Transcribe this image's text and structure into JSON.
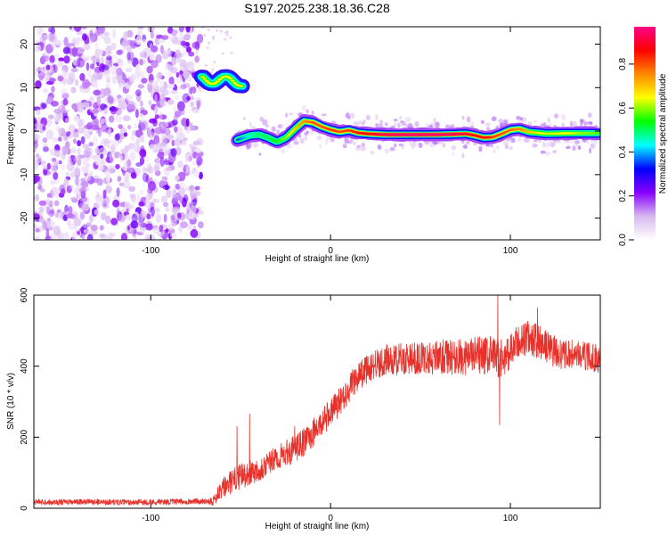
{
  "title": "S197.2025.238.18.36.C28",
  "chart_data": [
    {
      "type": "heatmap",
      "title": "S197.2025.238.18.36.C28",
      "xlabel": "Height of straight line (km)",
      "ylabel": "Frequency (Hz)",
      "xlim": [
        -165,
        150
      ],
      "ylim": [
        -25,
        24
      ],
      "xticks": [
        -100,
        0,
        100
      ],
      "yticks": [
        -20,
        -10,
        0,
        10,
        20
      ],
      "colorbar": {
        "label": "Normalized spectral amplitude",
        "range": [
          0,
          0.97
        ],
        "ticks": [
          0.0,
          0.2,
          0.4,
          0.6,
          0.8
        ],
        "tick_labels": [
          "0.0",
          "0.2",
          "0.4",
          "0.6",
          "0.8"
        ],
        "colormap": [
          "#ffffff",
          "#d8b8f0",
          "#8800ff",
          "#0000ff",
          "#00ffff",
          "#00ff00",
          "#ffff00",
          "#ff8800",
          "#ff0000",
          "#ff0088"
        ]
      },
      "noise_region": {
        "x": [
          -165,
          -72
        ],
        "y": [
          -25,
          24
        ],
        "amplitude_range": [
          0.0,
          0.2
        ]
      },
      "segments": [
        {
          "name": "upper band",
          "x": [
            -72,
            -50
          ],
          "freq_hz": 12,
          "peak_amplitude": 0.65
        },
        {
          "name": "main band",
          "x": [
            -52,
            148
          ],
          "peak_amplitude": 0.95
        }
      ],
      "ridge": {
        "x": [
          -52,
          -45,
          -40,
          -35,
          -30,
          -25,
          -20,
          -15,
          -10,
          -5,
          0,
          5,
          10,
          15,
          20,
          25,
          30,
          40,
          50,
          60,
          70,
          75,
          80,
          85,
          90,
          95,
          100,
          105,
          110,
          120,
          130,
          140,
          148
        ],
        "freq": [
          -2.0,
          -1.0,
          -0.8,
          -1.5,
          -2.5,
          -1.5,
          0.5,
          2.3,
          2.0,
          1.0,
          0.3,
          -0.2,
          0.2,
          -0.4,
          -0.6,
          -0.7,
          -0.8,
          -0.8,
          -0.8,
          -0.8,
          -0.7,
          -0.6,
          -1.0,
          -1.5,
          -1.4,
          -0.6,
          0.3,
          0.5,
          -0.2,
          -0.6,
          -0.5,
          -0.5,
          -0.5
        ],
        "amplitude": [
          0.35,
          0.45,
          0.5,
          0.5,
          0.55,
          0.6,
          0.7,
          0.75,
          0.8,
          0.8,
          0.82,
          0.8,
          0.82,
          0.85,
          0.87,
          0.9,
          0.93,
          0.95,
          0.95,
          0.95,
          0.93,
          0.9,
          0.85,
          0.88,
          0.82,
          0.8,
          0.78,
          0.76,
          0.7,
          0.62,
          0.65,
          0.6,
          0.58
        ]
      }
    },
    {
      "type": "line",
      "xlabel": "Height of straight line (km)",
      "ylabel": "SNR (10 * v/v)",
      "xlim": [
        -165,
        150
      ],
      "ylim": [
        0,
        600
      ],
      "xticks": [
        -100,
        0,
        100
      ],
      "yticks": [
        0,
        200,
        400,
        600
      ],
      "series": [
        {
          "name": "SNR",
          "color": "#e8312a",
          "x": [
            -165,
            -150,
            -130,
            -110,
            -90,
            -70,
            -65,
            -60,
            -55,
            -50,
            -45,
            -40,
            -35,
            -30,
            -25,
            -20,
            -15,
            -10,
            -5,
            0,
            5,
            10,
            15,
            20,
            25,
            30,
            40,
            50,
            60,
            70,
            80,
            90,
            95,
            100,
            105,
            110,
            115,
            120,
            125,
            130,
            135,
            140,
            145,
            150
          ],
          "values": [
            18,
            17,
            18,
            17,
            18,
            20,
            22,
            55,
            75,
            90,
            100,
            110,
            125,
            140,
            155,
            165,
            185,
            210,
            240,
            270,
            300,
            335,
            370,
            390,
            405,
            415,
            420,
            422,
            425,
            425,
            428,
            430,
            420,
            440,
            470,
            480,
            470,
            455,
            440,
            430,
            435,
            430,
            425,
            420
          ],
          "noise_amplitude": [
            8,
            8,
            8,
            8,
            8,
            8,
            15,
            30,
            35,
            35,
            35,
            35,
            35,
            35,
            35,
            40,
            40,
            40,
            40,
            40,
            40,
            40,
            40,
            40,
            45,
            45,
            45,
            45,
            50,
            50,
            55,
            55,
            55,
            50,
            50,
            50,
            50,
            45,
            45,
            40,
            40,
            40,
            40,
            40
          ],
          "spikes": [
            {
              "x": -45,
              "y": 265
            },
            {
              "x": -52,
              "y": 230
            },
            {
              "x": -20,
              "y": 230
            },
            {
              "x": 93,
              "y": 600
            },
            {
              "x": 94,
              "y": 235
            },
            {
              "x": 115,
              "y": 565
            }
          ]
        }
      ]
    }
  ]
}
